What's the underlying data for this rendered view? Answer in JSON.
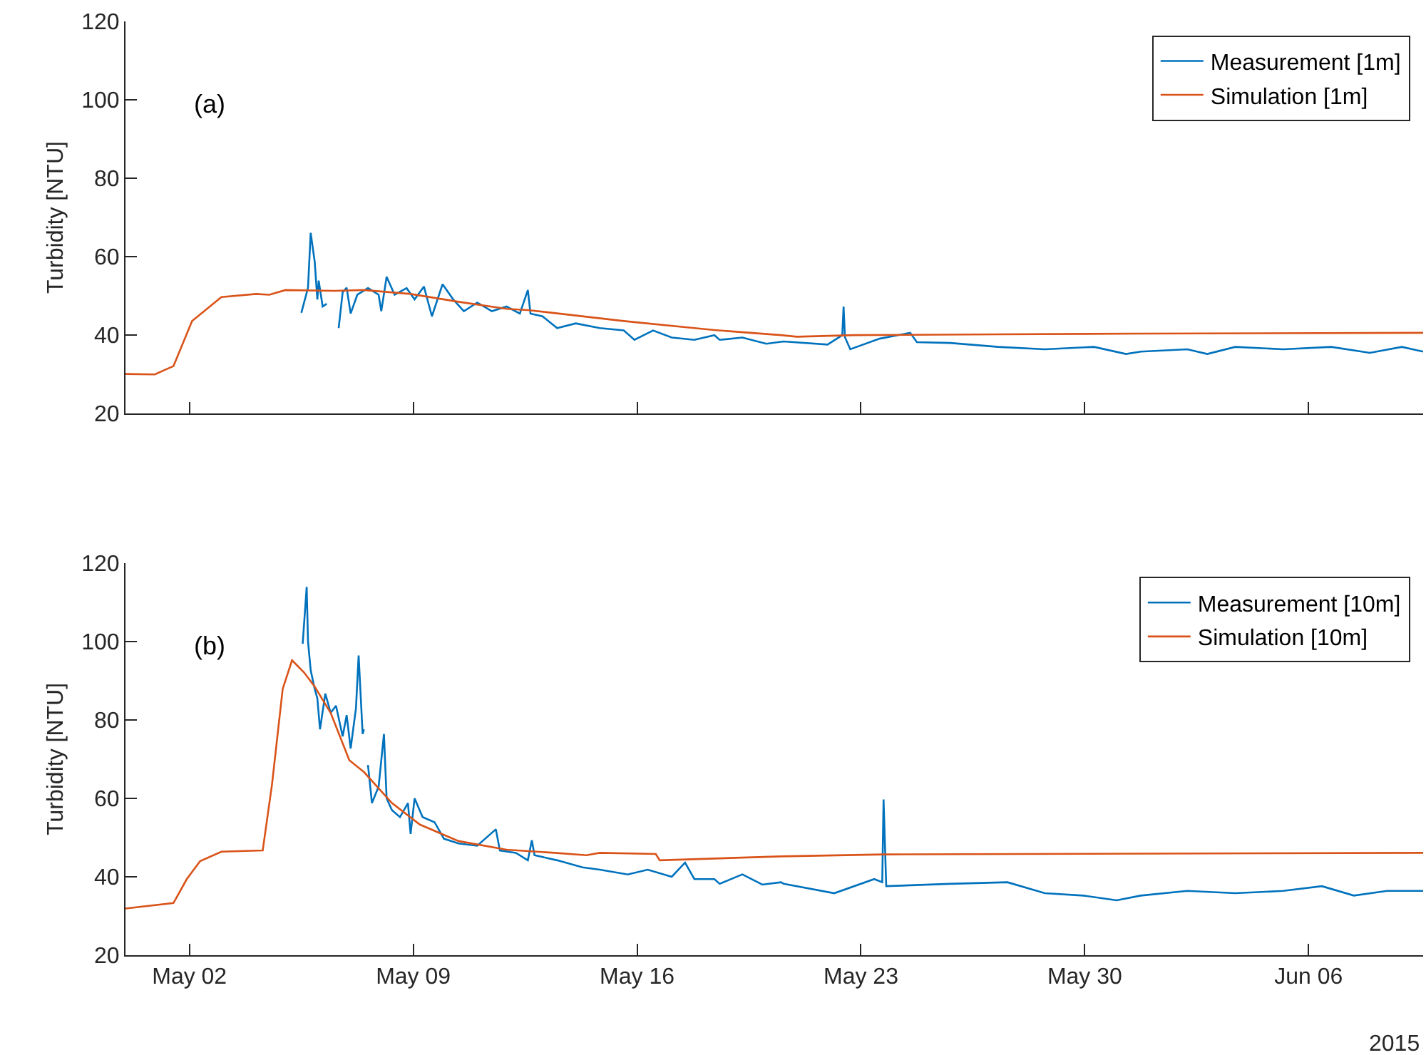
{
  "chart_data": [
    {
      "type": "line",
      "ylabel": "Turbidity [NTU]",
      "annotations": [
        "(a)"
      ],
      "legend": "top right",
      "tick_labels": "y",
      "xlim": [
        "2015-04-30T00:00",
        "2015-06-09T14:00"
      ],
      "xticks": [
        {
          "value": "2015-05-02",
          "label": null
        },
        {
          "value": "2015-05-09",
          "label": null
        },
        {
          "value": "2015-05-16",
          "label": null
        },
        {
          "value": "2015-05-23",
          "label": null
        },
        {
          "value": "2015-05-30",
          "label": null
        },
        {
          "value": "2015-06-06",
          "label": null
        }
      ],
      "ylim": [
        20,
        120
      ],
      "yticks": [
        20,
        40,
        60,
        80,
        100,
        120
      ],
      "series": [
        {
          "name": "Measurement [1m]",
          "color": "#0072bd",
          "x": [
            "2015-05-05T12:00",
            "2015-05-05T17:00",
            "2015-05-05T19:00",
            "2015-05-05T22:00",
            "2015-05-06T00:00",
            "2015-05-06T01:00",
            "2015-05-06T04:00",
            "2015-05-06T07:00",
            "2015-05-06T11:00",
            "2015-05-06T16:00",
            "2015-05-06T19:00",
            "2015-05-06T22:00",
            "2015-05-07T01:00",
            "2015-05-07T06:00",
            "2015-05-07T14:00",
            "2015-05-07T22:00",
            "2015-05-08T00:00",
            "2015-05-08T04:00",
            "2015-05-08T10:00",
            "2015-05-08T19:00",
            "2015-05-09T01:00",
            "2015-05-09T08:00",
            "2015-05-09T14:00",
            "2015-05-09T22:00",
            "2015-05-10T06:00",
            "2015-05-10T14:00",
            "2015-05-11T00:00",
            "2015-05-11T11:00",
            "2015-05-11T22:00",
            "2015-05-12T08:00",
            "2015-05-12T14:00",
            "2015-05-12T16:00",
            "2015-05-13T01:00",
            "2015-05-13T12:00",
            "2015-05-14T02:00",
            "2015-05-14T20:00",
            "2015-05-15T14:00",
            "2015-05-15T22:00",
            "2015-05-16T12:00",
            "2015-05-17T02:00",
            "2015-05-17T19:00",
            "2015-05-18T10:00",
            "2015-05-18T14:00",
            "2015-05-19T07:00",
            "2015-05-20T01:00",
            "2015-05-20T14:00",
            "2015-05-21T23:00",
            "2015-05-22T10:00",
            "2015-05-22T11:00",
            "2015-05-22T12:00",
            "2015-05-22T16:00",
            "2015-05-23T14:00",
            "2015-05-24T13:00",
            "2015-05-24T18:00",
            "2015-05-25T19:00",
            "2015-05-27T07:00",
            "2015-05-28T18:00",
            "2015-05-30T07:00",
            "2015-05-31T07:00",
            "2015-05-31T18:00",
            "2015-06-02T05:00",
            "2015-06-02T20:00",
            "2015-06-03T17:00",
            "2015-06-05T05:00",
            "2015-06-06T17:00",
            "2015-06-07T22:00",
            "2015-06-08T22:00",
            "2015-06-09T14:00"
          ],
          "values": [
            45.7,
            52.1,
            66.1,
            58.8,
            49.1,
            53.9,
            47.3,
            48,
            null,
            41.8,
            50.9,
            52.1,
            45.5,
            50.3,
            52,
            50.3,
            46.1,
            54.9,
            50.3,
            52,
            49.1,
            52.4,
            44.8,
            53,
            49.1,
            46.1,
            48.3,
            46.1,
            47.3,
            45.5,
            51.5,
            45.5,
            44.8,
            41.8,
            43,
            41.8,
            41.2,
            38.8,
            41.2,
            39.4,
            38.8,
            40,
            38.8,
            39.4,
            37.8,
            38.4,
            37.6,
            40,
            47.3,
            39.5,
            36.4,
            39.1,
            40.6,
            38.2,
            38,
            37,
            36.4,
            37,
            35.2,
            35.8,
            36.4,
            35.2,
            37,
            36.4,
            37,
            35.5,
            37,
            35.8
          ]
        },
        {
          "name": "Simulation [1m]",
          "color": "#d95319",
          "x": [
            "2015-04-30T00:00",
            "2015-04-30T22:00",
            "2015-05-01T12:00",
            "2015-05-02T02:00",
            "2015-05-03T00:00",
            "2015-05-04T02:00",
            "2015-05-04T12:00",
            "2015-05-05T00:00",
            "2015-05-06T13:00",
            "2015-05-07T11:00",
            "2015-05-08T22:00",
            "2015-05-10T10:00",
            "2015-05-11T22:00",
            "2015-05-12T14:00",
            "2015-05-14T02:00",
            "2015-05-15T14:00",
            "2015-05-17T19:00",
            "2015-05-18T10:00",
            "2015-05-20T12:00",
            "2015-05-21T00:00",
            "2015-05-22T19:00",
            "2015-05-27T07:00",
            "2015-05-31T17:00",
            "2015-06-09T14:00"
          ],
          "values": [
            30.1,
            30,
            32.1,
            43.6,
            49.7,
            50.5,
            50.3,
            51.5,
            51.3,
            51.5,
            50.5,
            48.5,
            46.7,
            46.4,
            45,
            43.6,
            41.8,
            41.3,
            40,
            39.6,
            40,
            40.2,
            40.4,
            40.6
          ]
        }
      ]
    },
    {
      "type": "line",
      "ylabel": "Turbidity [NTU]",
      "annotations": [
        "(b)",
        "2015"
      ],
      "legend": "top right",
      "xlim": [
        "2015-04-30T00:00",
        "2015-06-09T14:00"
      ],
      "xticks": [
        {
          "value": "2015-05-02",
          "label": "May 02"
        },
        {
          "value": "2015-05-09",
          "label": "May 09"
        },
        {
          "value": "2015-05-16",
          "label": "May 16"
        },
        {
          "value": "2015-05-23",
          "label": "May 23"
        },
        {
          "value": "2015-05-30",
          "label": "May 30"
        },
        {
          "value": "2015-06-06",
          "label": "Jun 06"
        }
      ],
      "ylim": [
        20,
        120
      ],
      "yticks": [
        20,
        40,
        60,
        80,
        100,
        120
      ],
      "series": [
        {
          "name": "Measurement [10m]",
          "color": "#0072bd",
          "x": [
            "2015-05-05T13:00",
            "2015-05-05T16:00",
            "2015-05-05T17:00",
            "2015-05-05T19:00",
            "2015-05-05T22:00",
            "2015-05-06T00:00",
            "2015-05-06T02:00",
            "2015-05-06T06:00",
            "2015-05-06T10:00",
            "2015-05-06T14:00",
            "2015-05-06T19:00",
            "2015-05-06T22:00",
            "2015-05-07T01:00",
            "2015-05-07T05:00",
            "2015-05-07T07:00",
            "2015-05-07T10:00",
            "2015-05-07T11:00",
            "2015-05-07T12:00",
            "2015-05-07T14:00",
            "2015-05-07T17:00",
            "2015-05-07T22:00",
            "2015-05-08T02:00",
            "2015-05-08T04:00",
            "2015-05-08T08:00",
            "2015-05-08T14:00",
            "2015-05-08T20:00",
            "2015-05-08T22:00",
            "2015-05-09T01:00",
            "2015-05-09T07:00",
            "2015-05-09T16:00",
            "2015-05-09T23:00",
            "2015-05-10T10:00",
            "2015-05-11T00:00",
            "2015-05-11T14:00",
            "2015-05-11T17:00",
            "2015-05-12T05:00",
            "2015-05-12T14:00",
            "2015-05-12T17:00",
            "2015-05-12T19:00",
            "2015-05-13T12:00",
            "2015-05-14T07:00",
            "2015-05-14T20:00",
            "2015-05-15T17:00",
            "2015-05-16T08:00",
            "2015-05-17T02:00",
            "2015-05-17T12:00",
            "2015-05-17T19:00",
            "2015-05-18T10:00",
            "2015-05-18T14:00",
            "2015-05-19T07:00",
            "2015-05-19T22:00",
            "2015-05-20T12:00",
            "2015-05-20T14:00",
            "2015-05-22T04:00",
            "2015-05-23T10:00",
            "2015-05-23T16:00",
            "2015-05-23T17:00",
            "2015-05-23T19:00",
            "2015-05-25T19:00",
            "2015-05-27T14:00",
            "2015-05-28T18:00",
            "2015-05-29T23:00",
            "2015-05-31T00:00",
            "2015-05-31T18:00",
            "2015-06-02T05:00",
            "2015-06-03T17:00",
            "2015-06-05T05:00",
            "2015-06-06T10:00",
            "2015-06-07T10:00",
            "2015-06-08T11:00",
            "2015-06-09T14:00"
          ],
          "values": [
            99.4,
            113.9,
            100,
            92.7,
            87.9,
            85.5,
            77.6,
            86.7,
            81.8,
            83.6,
            75.8,
            81.2,
            72.7,
            83,
            96.4,
            76.4,
            77.6,
            null,
            68.5,
            58.8,
            63,
            76.4,
            60,
            57,
            55.2,
            58.8,
            50.9,
            60,
            55.2,
            53.9,
            49.7,
            48.5,
            47.9,
            52.1,
            46.7,
            46.1,
            44.2,
            49.3,
            45.5,
            44.2,
            42.4,
            41.8,
            40.6,
            41.8,
            40,
            43.6,
            39.4,
            39.4,
            38.2,
            40.6,
            38,
            38.6,
            38.2,
            35.8,
            39.4,
            38.6,
            59.7,
            37.6,
            38.2,
            38.6,
            35.8,
            35.2,
            34,
            35.2,
            36.4,
            35.8,
            36.4,
            37.6,
            35.2,
            36.4,
            36.4
          ]
        },
        {
          "name": "Simulation [10m]",
          "color": "#d95319",
          "x": [
            "2015-04-30T00:00",
            "2015-05-01T12:00",
            "2015-05-01T22:00",
            "2015-05-02T08:00",
            "2015-05-03T00:00",
            "2015-05-04T07:00",
            "2015-05-04T14:00",
            "2015-05-04T22:00",
            "2015-05-05T05:00",
            "2015-05-05T14:00",
            "2015-05-05T22:00",
            "2015-05-06T10:00",
            "2015-05-07T00:00",
            "2015-05-07T11:00",
            "2015-05-08T08:00",
            "2015-05-09T05:00",
            "2015-05-10T10:00",
            "2015-05-11T22:00",
            "2015-05-13T10:00",
            "2015-05-14T10:00",
            "2015-05-14T20:00",
            "2015-05-16T14:00",
            "2015-05-16T17:00",
            "2015-05-20T12:00",
            "2015-05-23T17:00",
            "2015-06-09T14:00"
          ],
          "values": [
            31.9,
            33.3,
            39.4,
            44,
            46.4,
            46.7,
            63.6,
            87.9,
            95.2,
            92.1,
            88.5,
            81.8,
            69.7,
            66.7,
            58.8,
            53.3,
            49.1,
            46.9,
            46.1,
            45.5,
            46.1,
            45.8,
            44.2,
            45.2,
            45.7,
            46.1
          ]
        }
      ]
    }
  ]
}
